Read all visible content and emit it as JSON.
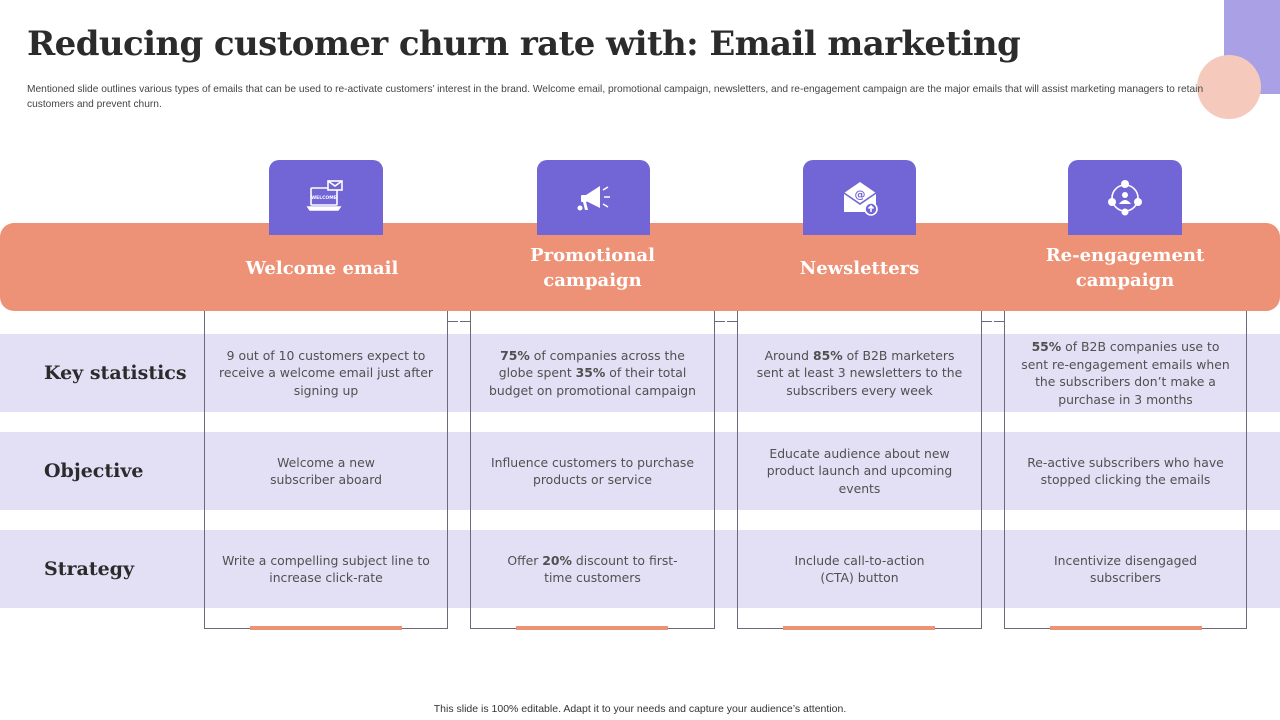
{
  "title": "Reducing customer churn rate with: Email marketing",
  "subtitle": "Mentioned slide outlines various types of emails that can be used to re-activate customers’ interest in the brand. Welcome email, promotional campaign, newsletters, and re-engagement campaign are the major emails that will assist marketing managers to retain customers and prevent churn.",
  "columns": [
    {
      "label": "Welcome email",
      "icon": "welcome-email-laptop-icon",
      "icon_text": "WELCOME"
    },
    {
      "label_line1": "Promotional",
      "label_line2": "campaign",
      "icon": "megaphone-icon"
    },
    {
      "label": "Newsletters",
      "icon": "newsletter-envelope-icon"
    },
    {
      "label": "Re-engagement campaign",
      "icon": "network-people-icon"
    }
  ],
  "rows": [
    {
      "label": "Key statistics",
      "cells": [
        {
          "parts": [
            "9 out of 10 customers expect to receive a welcome email just after signing up"
          ]
        },
        {
          "parts": [
            "75%",
            " of companies across the globe spent ",
            "35%",
            " of their total budget on promotional campaign"
          ]
        },
        {
          "parts": [
            "Around ",
            "85%",
            " of B2B marketers sent at least 3 newsletters to the subscribers every week"
          ]
        },
        {
          "parts": [
            "55%",
            " of B2B companies use to sent re-engagement emails when the subscribers don’t make a purchase in 3 months"
          ]
        }
      ]
    },
    {
      "label": "Objective",
      "cells": [
        {
          "parts": [
            "Welcome a new subscriber aboard"
          ]
        },
        {
          "parts": [
            "Influence customers to purchase products or service"
          ]
        },
        {
          "parts": [
            "Educate audience about new product launch and upcoming events"
          ]
        },
        {
          "parts": [
            "Re-active subscribers who have stopped clicking the emails"
          ]
        }
      ]
    },
    {
      "label": "Strategy",
      "cells": [
        {
          "parts": [
            "Write a compelling subject line to increase click-rate"
          ]
        },
        {
          "parts": [
            "Offer ",
            "20%",
            " discount to first-time customers"
          ]
        },
        {
          "parts": [
            "Include call-to-action (CTA) button"
          ]
        },
        {
          "parts": [
            "Incentivize disengaged subscribers"
          ]
        }
      ]
    }
  ],
  "footer": "This slide is 100% editable. Adapt it to your needs and capture your audience’s attention.",
  "colors": {
    "accent_purple": "#7265d6",
    "band_salmon": "#ee9277",
    "row_lavender": "#e3e0f5",
    "deco_lavender": "#a9a0e6",
    "deco_peach": "#f5cabd"
  }
}
